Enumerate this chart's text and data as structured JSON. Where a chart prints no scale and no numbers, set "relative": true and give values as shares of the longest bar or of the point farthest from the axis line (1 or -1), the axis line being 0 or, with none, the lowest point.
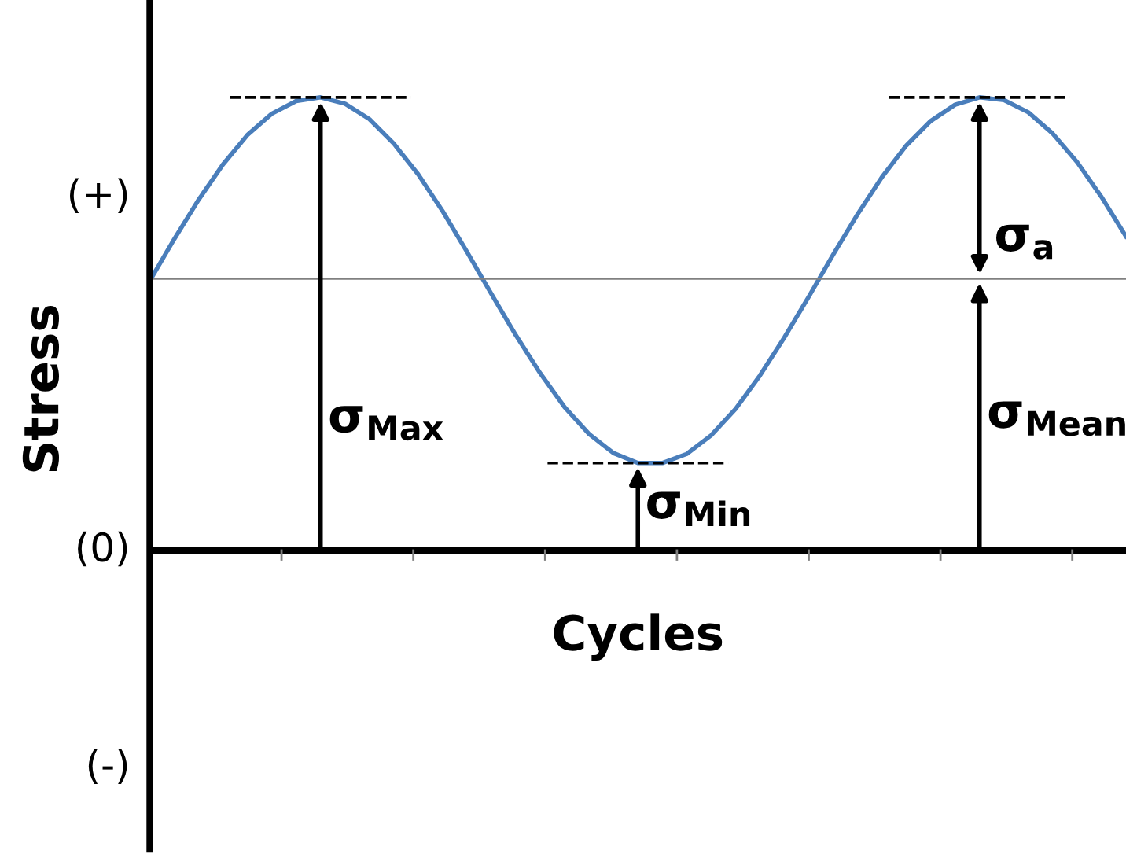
{
  "chart_data": {
    "type": "line",
    "relative": true,
    "xlabel": "Cycles",
    "ylabel": "Stress",
    "categories": [
      null,
      null,
      null,
      null,
      null,
      null,
      null,
      null,
      null,
      null,
      null,
      null,
      null,
      null,
      null,
      null,
      null,
      null,
      null,
      null,
      null,
      null,
      null,
      null,
      null,
      null,
      null,
      null,
      null,
      null,
      null,
      null,
      null,
      null,
      null,
      null,
      null,
      null,
      null,
      null,
      null
    ],
    "series": [
      {
        "color": "#4a7ebb",
        "values": [
          0.595,
          0.687,
          0.774,
          0.852,
          0.917,
          0.964,
          0.992,
          1.0,
          0.986,
          0.952,
          0.898,
          0.83,
          0.749,
          0.659,
          0.566,
          0.475,
          0.391,
          0.316,
          0.257,
          0.215,
          0.193,
          0.193,
          0.213,
          0.254,
          0.312,
          0.386,
          0.47,
          0.56,
          0.653,
          0.742,
          0.824,
          0.894,
          0.948,
          0.984,
          1.0,
          0.994,
          0.967,
          0.92,
          0.857,
          0.78,
          0.693
        ]
      }
    ],
    "ref_lines": [
      {
        "axis": "y",
        "value": 0.6,
        "color": "#808080"
      }
    ],
    "annotations": [
      "σ$_{Max}$",
      "σ$_{Min}$",
      "σ$_{a}$",
      "σ$_{Mean}$",
      "(+)",
      "(0)",
      "(-)"
    ],
    "legend": false,
    "marker": "none",
    "line_style": "solid"
  }
}
